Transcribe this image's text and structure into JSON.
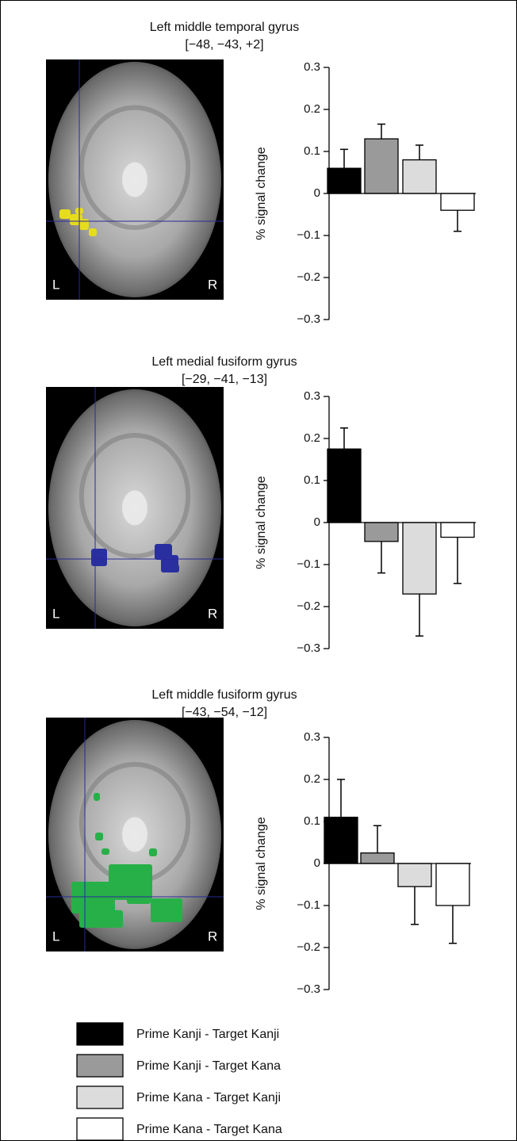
{
  "chart_data": [
    {
      "type": "bar",
      "title": "Left middle temporal gyrus",
      "subtitle": "[−48, −43, +2]",
      "ylabel": "% signal change",
      "brain_labels": [
        "L",
        "R"
      ],
      "blob_color": "#e6dc1e",
      "categories": [
        null,
        null,
        null,
        null
      ],
      "values": [
        0.06,
        0.13,
        0.08,
        -0.04
      ],
      "errors": [
        0.045,
        0.035,
        0.035,
        0.05
      ],
      "ylim": [
        -0.3,
        0.3
      ],
      "yticks": [
        {
          "value": -0.3,
          "label": "−0.3"
        },
        {
          "value": -0.2,
          "label": "−0.2"
        },
        {
          "value": -0.1,
          "label": "−0.1"
        },
        0,
        0.1,
        0.2,
        0.3
      ]
    },
    {
      "type": "bar",
      "title": "Left medial fusiform gyrus",
      "subtitle": "[−29, −41, −13]",
      "ylabel": "% signal change",
      "brain_labels": [
        "L",
        "R"
      ],
      "blob_color": "#2a2fa0",
      "categories": [
        null,
        null,
        null,
        null
      ],
      "values": [
        0.175,
        -0.045,
        -0.17,
        -0.035
      ],
      "errors": [
        0.05,
        0.075,
        0.1,
        0.11
      ],
      "ylim": [
        -0.3,
        0.3
      ],
      "yticks": [
        {
          "value": -0.3,
          "label": "−0.3"
        },
        {
          "value": -0.2,
          "label": "−0.2"
        },
        {
          "value": -0.1,
          "label": "−0.1"
        },
        0,
        0.1,
        0.2,
        0.3
      ]
    },
    {
      "type": "bar",
      "title": "Left middle fusiform gyrus",
      "subtitle": "[−43, −54, −12]",
      "ylabel": "% signal change",
      "brain_labels": [
        "L",
        "R"
      ],
      "blob_color": "#27b048",
      "categories": [
        null,
        null,
        null,
        null
      ],
      "values": [
        0.11,
        0.025,
        -0.055,
        -0.1
      ],
      "errors": [
        0.09,
        0.065,
        0.09,
        0.09
      ],
      "ylim": [
        -0.3,
        0.3
      ],
      "yticks": [
        {
          "value": -0.3,
          "label": "−0.3"
        },
        {
          "value": -0.2,
          "label": "−0.2"
        },
        {
          "value": -0.1,
          "label": "−0.1"
        },
        0,
        0.1,
        0.2,
        0.3
      ]
    }
  ],
  "legend": [
    {
      "label": "Prime Kanji - Target Kanji",
      "color": "#000000"
    },
    {
      "label": "Prime Kanji - Target Kana",
      "color": "#9a9a9a"
    },
    {
      "label": "Prime Kana - Target Kanji",
      "color": "#dcdcdc"
    },
    {
      "label": "Prime Kana - Target Kana",
      "color": "#ffffff"
    }
  ]
}
